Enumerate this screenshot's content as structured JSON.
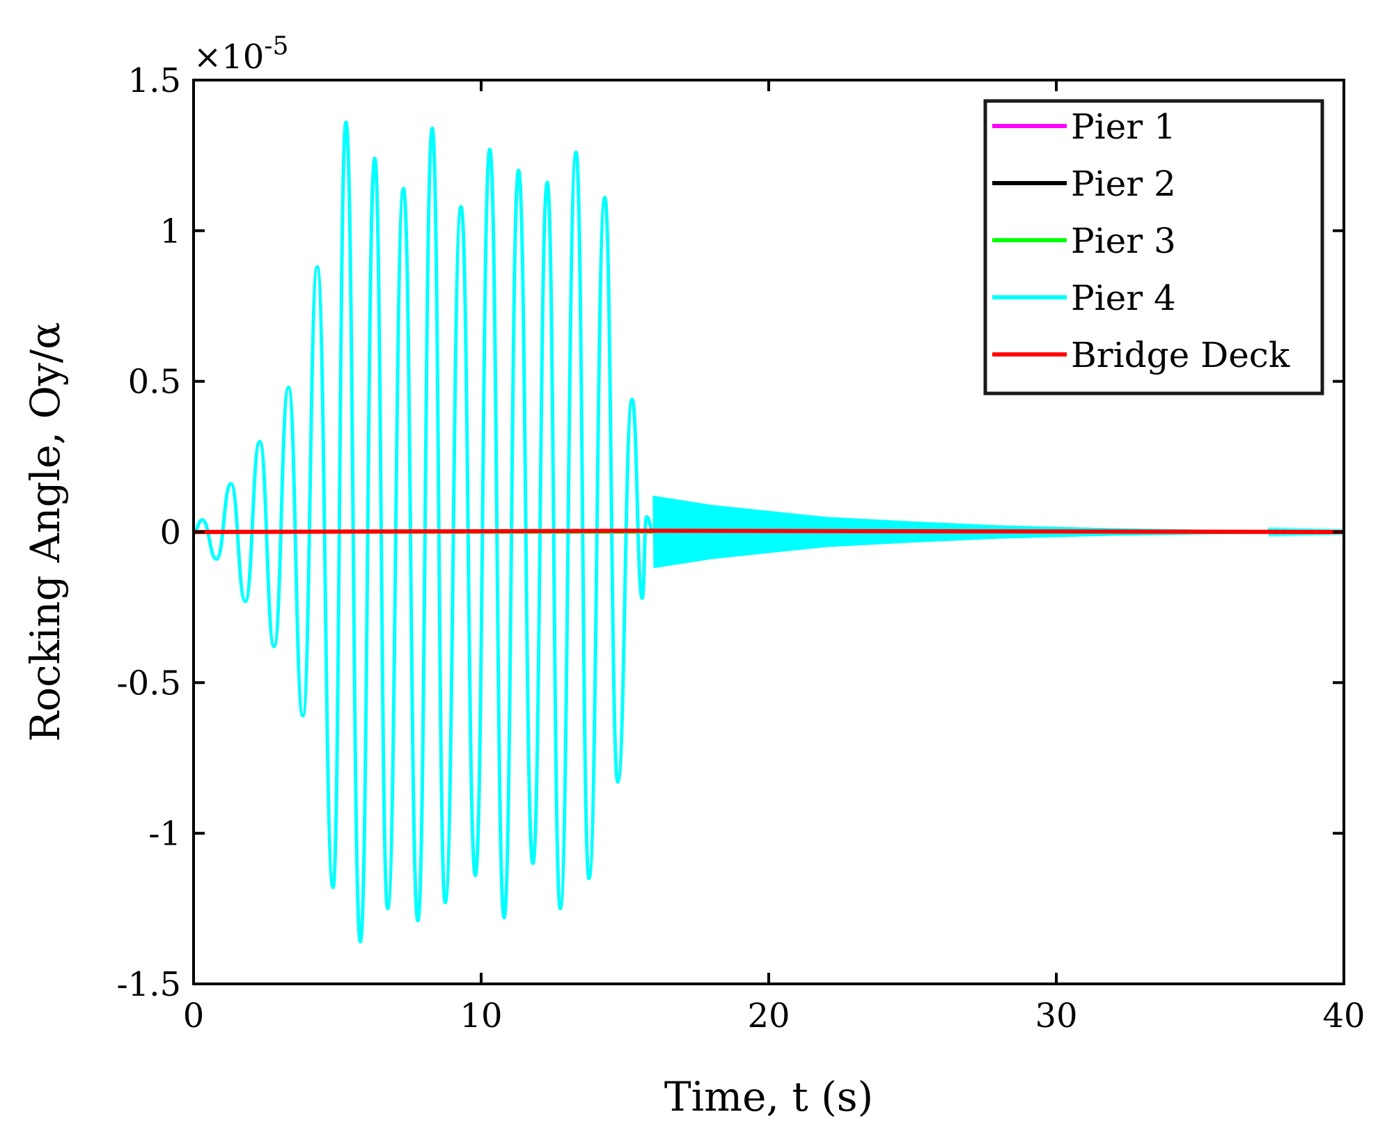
{
  "chart_data": {
    "type": "line",
    "xlabel": "Time, t (s)",
    "ylabel": "Rocking Angle, Oy/α",
    "xlim": [
      0,
      40
    ],
    "ylim": [
      -1.5,
      1.5
    ],
    "y_scale_factor_label": "×10-5",
    "y_scale_exponent": -5,
    "x_ticks": [
      0,
      10,
      20,
      30,
      40
    ],
    "x_tick_labels": [
      "0",
      "10",
      "20",
      "30",
      "40"
    ],
    "y_ticks": [
      -1.5,
      -1,
      -0.5,
      0,
      0.5,
      1,
      1.5
    ],
    "y_tick_labels": [
      "-1.5",
      "-1",
      "-0.5",
      "0",
      "0.5",
      "1",
      "1.5"
    ],
    "grid": false,
    "legend_position": "top-right",
    "series": [
      {
        "name": "Pier 1",
        "color": "#ff00ff",
        "peaks": {
          "t": [
            0,
            40
          ],
          "y": [
            0,
            0
          ]
        }
      },
      {
        "name": "Pier 2",
        "color": "#000000",
        "peaks": {
          "t": [
            0,
            40
          ],
          "y": [
            0,
            0
          ]
        }
      },
      {
        "name": "Pier 3",
        "color": "#00ff00",
        "peaks": {
          "t": [
            0,
            40
          ],
          "y": [
            0,
            0
          ]
        }
      },
      {
        "name": "Pier 4",
        "color": "#00ffff",
        "peaks": {
          "t": [
            0,
            0.3,
            0.8,
            1.3,
            1.8,
            2.3,
            2.8,
            3.3,
            3.8,
            4.3,
            4.85,
            5.3,
            5.8,
            6.3,
            6.75,
            7.3,
            7.8,
            8.3,
            8.75,
            9.3,
            9.8,
            10.3,
            10.8,
            11.3,
            11.8,
            12.3,
            12.75,
            13.3,
            13.75,
            14.3,
            14.75,
            15.25,
            15.6,
            15.75,
            16.0
          ],
          "y": [
            0,
            0.04,
            -0.09,
            0.16,
            -0.23,
            0.3,
            -0.38,
            0.48,
            -0.61,
            0.88,
            -1.18,
            1.36,
            -1.36,
            1.24,
            -1.25,
            1.14,
            -1.29,
            1.34,
            -1.23,
            1.08,
            -1.14,
            1.27,
            -1.28,
            1.2,
            -1.1,
            1.16,
            -1.25,
            1.26,
            -1.15,
            1.11,
            -0.83,
            0.44,
            -0.22,
            0.05,
            0
          ]
        },
        "tail_envelope": {
          "t": [
            16.0,
            18,
            20,
            22,
            25,
            28,
            32,
            36,
            40
          ],
          "upper": [
            0.12,
            0.09,
            0.07,
            0.05,
            0.035,
            0.022,
            0.012,
            0.006,
            0.003
          ],
          "lower": [
            -0.12,
            -0.09,
            -0.07,
            -0.05,
            -0.035,
            -0.022,
            -0.012,
            -0.006,
            -0.003
          ]
        }
      },
      {
        "name": "Bridge Deck",
        "color": "#ff0000",
        "peaks": {
          "t": [
            0,
            16,
            40
          ],
          "y": [
            0,
            0.004,
            0
          ]
        }
      }
    ]
  }
}
